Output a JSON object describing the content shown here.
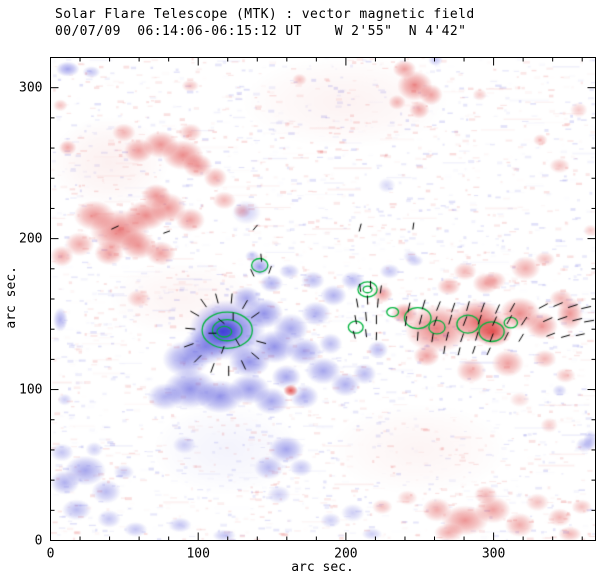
{
  "header": {
    "line1": "Solar Flare Telescope (MTK) : vector magnetic field",
    "line2": "00/07/09  06:14:06-06:15:12 UT    W 2'55\"  N 4'42\""
  },
  "chart_data": {
    "type": "heatmap",
    "title": "Solar Flare Telescope (MTK) : vector magnetic field",
    "subtitle": "00/07/09  06:14:06-06:15:12 UT    W 2'55\"  N 4'42\"",
    "xlabel": "arc sec.",
    "ylabel": "arc sec.",
    "xlim": [
      0,
      369
    ],
    "ylim": [
      0,
      320
    ],
    "xticks": [
      0,
      100,
      200,
      300
    ],
    "yticks": [
      0,
      100,
      200,
      300
    ],
    "minor_tick_step": 20,
    "legend": "none",
    "grid": false,
    "colors": {
      "positive": "#dc2d2d",
      "negative": "#3a3ad7",
      "contour": "#00b43c",
      "vector": "#000000",
      "axis": "#000000",
      "background": "#ffffff"
    },
    "noise": {
      "seed": 20000709,
      "count": 3200,
      "max_alpha": 0.16
    },
    "blobs": [
      [
        200,
        290,
        70,
        30,
        "r",
        0.06
      ],
      [
        90,
        160,
        50,
        25,
        "r",
        0.05
      ],
      [
        250,
        60,
        60,
        30,
        "r",
        0.05
      ],
      [
        120,
        60,
        50,
        30,
        "b",
        0.06
      ],
      [
        40,
        250,
        40,
        30,
        "r",
        0.07
      ],
      [
        12,
        312,
        8,
        5,
        "b",
        0.45
      ],
      [
        28,
        310,
        6,
        4,
        "b",
        0.3
      ],
      [
        7,
        146,
        5,
        8,
        "b",
        0.4
      ],
      [
        10,
        93,
        5,
        4,
        "b",
        0.25
      ],
      [
        261,
        318,
        5,
        4,
        "b",
        0.3
      ],
      [
        120,
        139,
        26,
        20,
        "b",
        0.75
      ],
      [
        117,
        138,
        13,
        9,
        "b",
        0.9
      ],
      [
        105,
        128,
        16,
        12,
        "b",
        0.55
      ],
      [
        92,
        120,
        16,
        12,
        "b",
        0.5
      ],
      [
        95,
        100,
        18,
        13,
        "b",
        0.55
      ],
      [
        78,
        95,
        12,
        9,
        "b",
        0.4
      ],
      [
        115,
        95,
        16,
        11,
        "b",
        0.55
      ],
      [
        135,
        100,
        14,
        10,
        "b",
        0.5
      ],
      [
        150,
        92,
        12,
        9,
        "b",
        0.45
      ],
      [
        135,
        118,
        14,
        10,
        "b",
        0.55
      ],
      [
        152,
        128,
        14,
        11,
        "b",
        0.55
      ],
      [
        145,
        150,
        13,
        10,
        "b",
        0.55
      ],
      [
        133,
        160,
        10,
        8,
        "b",
        0.45
      ],
      [
        142,
        181,
        7,
        6,
        "b",
        0.5
      ],
      [
        150,
        170,
        8,
        6,
        "b",
        0.4
      ],
      [
        163,
        140,
        12,
        10,
        "b",
        0.45
      ],
      [
        172,
        125,
        12,
        9,
        "b",
        0.45
      ],
      [
        185,
        112,
        12,
        9,
        "b",
        0.45
      ],
      [
        200,
        103,
        10,
        8,
        "b",
        0.4
      ],
      [
        213,
        110,
        8,
        7,
        "b",
        0.35
      ],
      [
        190,
        130,
        8,
        7,
        "b",
        0.35
      ],
      [
        180,
        150,
        10,
        8,
        "b",
        0.4
      ],
      [
        192,
        162,
        9,
        7,
        "b",
        0.4
      ],
      [
        205,
        172,
        8,
        6,
        "b",
        0.35
      ],
      [
        178,
        172,
        8,
        6,
        "b",
        0.35
      ],
      [
        162,
        178,
        7,
        5,
        "b",
        0.3
      ],
      [
        222,
        126,
        7,
        6,
        "b",
        0.35
      ],
      [
        172,
        95,
        10,
        8,
        "b",
        0.4
      ],
      [
        160,
        108,
        10,
        8,
        "b",
        0.45
      ],
      [
        230,
        178,
        7,
        5,
        "b",
        0.3
      ],
      [
        247,
        185,
        6,
        4,
        "b",
        0.25
      ],
      [
        137,
        188,
        5,
        4,
        "b",
        0.3
      ],
      [
        244,
        188,
        5,
        4,
        "b",
        0.2
      ],
      [
        160,
        60,
        12,
        9,
        "b",
        0.45
      ],
      [
        148,
        48,
        10,
        8,
        "b",
        0.35
      ],
      [
        170,
        48,
        8,
        6,
        "b",
        0.3
      ],
      [
        155,
        30,
        8,
        6,
        "b",
        0.25
      ],
      [
        91,
        63,
        8,
        6,
        "b",
        0.25
      ],
      [
        133,
        217,
        10,
        8,
        "b",
        0.25
      ],
      [
        228,
        235,
        6,
        5,
        "b",
        0.2
      ],
      [
        24,
        46,
        14,
        10,
        "b",
        0.45
      ],
      [
        10,
        38,
        10,
        8,
        "b",
        0.4
      ],
      [
        38,
        32,
        10,
        8,
        "b",
        0.35
      ],
      [
        18,
        20,
        10,
        7,
        "b",
        0.35
      ],
      [
        40,
        14,
        8,
        6,
        "b",
        0.3
      ],
      [
        8,
        58,
        8,
        6,
        "b",
        0.3
      ],
      [
        50,
        45,
        7,
        5,
        "b",
        0.25
      ],
      [
        30,
        60,
        6,
        5,
        "b",
        0.25
      ],
      [
        58,
        7,
        8,
        5,
        "b",
        0.3
      ],
      [
        88,
        10,
        8,
        5,
        "b",
        0.3
      ],
      [
        118,
        3,
        8,
        4,
        "b",
        0.3
      ],
      [
        190,
        13,
        7,
        5,
        "b",
        0.25
      ],
      [
        218,
        4,
        7,
        4,
        "b",
        0.25
      ],
      [
        205,
        18,
        8,
        6,
        "b",
        0.25
      ],
      [
        345,
        99,
        5,
        4,
        "b",
        0.25
      ],
      [
        362,
        63,
        6,
        5,
        "b",
        0.3
      ],
      [
        366,
        66,
        5,
        7,
        "b",
        0.3
      ],
      [
        47,
        205,
        20,
        14,
        "r",
        0.6
      ],
      [
        30,
        215,
        14,
        10,
        "r",
        0.5
      ],
      [
        65,
        215,
        14,
        10,
        "r",
        0.55
      ],
      [
        80,
        220,
        12,
        10,
        "r",
        0.5
      ],
      [
        72,
        228,
        10,
        8,
        "r",
        0.5
      ],
      [
        95,
        212,
        10,
        8,
        "r",
        0.45
      ],
      [
        60,
        195,
        12,
        9,
        "r",
        0.5
      ],
      [
        75,
        190,
        10,
        8,
        "r",
        0.45
      ],
      [
        40,
        190,
        10,
        8,
        "r",
        0.45
      ],
      [
        20,
        196,
        10,
        8,
        "r",
        0.4
      ],
      [
        8,
        188,
        8,
        7,
        "r",
        0.4
      ],
      [
        90,
        255,
        14,
        10,
        "r",
        0.55
      ],
      [
        75,
        262,
        12,
        9,
        "r",
        0.5
      ],
      [
        60,
        258,
        10,
        8,
        "r",
        0.45
      ],
      [
        100,
        248,
        10,
        8,
        "r",
        0.5
      ],
      [
        112,
        240,
        8,
        7,
        "r",
        0.4
      ],
      [
        50,
        270,
        8,
        6,
        "r",
        0.35
      ],
      [
        95,
        270,
        8,
        6,
        "r",
        0.35
      ],
      [
        118,
        225,
        8,
        6,
        "r",
        0.35
      ],
      [
        130,
        218,
        6,
        5,
        "r",
        0.3
      ],
      [
        12,
        260,
        6,
        5,
        "r",
        0.4
      ],
      [
        7,
        288,
        5,
        4,
        "r",
        0.3
      ],
      [
        60,
        160,
        8,
        6,
        "r",
        0.3
      ],
      [
        95,
        301,
        6,
        4,
        "r",
        0.3
      ],
      [
        247,
        301,
        12,
        10,
        "r",
        0.55
      ],
      [
        240,
        312,
        8,
        6,
        "r",
        0.45
      ],
      [
        258,
        295,
        8,
        7,
        "r",
        0.45
      ],
      [
        250,
        285,
        7,
        6,
        "r",
        0.4
      ],
      [
        235,
        290,
        6,
        5,
        "r",
        0.35
      ],
      [
        169,
        305,
        5,
        4,
        "r",
        0.3
      ],
      [
        291,
        295,
        5,
        4,
        "r",
        0.25
      ],
      [
        332,
        265,
        5,
        4,
        "r",
        0.3
      ],
      [
        262,
        140,
        22,
        16,
        "r",
        0.6
      ],
      [
        290,
        145,
        18,
        14,
        "r",
        0.7
      ],
      [
        300,
        138,
        13,
        10,
        "r",
        0.8
      ],
      [
        318,
        150,
        14,
        11,
        "r",
        0.55
      ],
      [
        333,
        142,
        11,
        9,
        "r",
        0.5
      ],
      [
        310,
        117,
        11,
        9,
        "r",
        0.45
      ],
      [
        285,
        112,
        10,
        8,
        "r",
        0.4
      ],
      [
        255,
        122,
        9,
        7,
        "r",
        0.45
      ],
      [
        240,
        150,
        9,
        7,
        "r",
        0.55
      ],
      [
        225,
        163,
        7,
        6,
        "r",
        0.45
      ],
      [
        352,
        150,
        9,
        11,
        "r",
        0.5
      ],
      [
        295,
        170,
        9,
        7,
        "r",
        0.4
      ],
      [
        270,
        168,
        8,
        6,
        "r",
        0.4
      ],
      [
        322,
        180,
        10,
        8,
        "r",
        0.4
      ],
      [
        335,
        186,
        7,
        5,
        "r",
        0.3
      ],
      [
        346,
        160,
        8,
        6,
        "r",
        0.35
      ],
      [
        281,
        178,
        8,
        6,
        "r",
        0.35
      ],
      [
        301,
        172,
        8,
        6,
        "r",
        0.35
      ],
      [
        335,
        120,
        8,
        6,
        "r",
        0.35
      ],
      [
        349,
        109,
        7,
        5,
        "r",
        0.3
      ],
      [
        318,
        93,
        7,
        5,
        "r",
        0.2
      ],
      [
        366,
        205,
        5,
        4,
        "r",
        0.25
      ],
      [
        345,
        248,
        7,
        5,
        "r",
        0.3
      ],
      [
        358,
        285,
        6,
        5,
        "r",
        0.25
      ],
      [
        281,
        13,
        16,
        10,
        "r",
        0.5
      ],
      [
        300,
        20,
        12,
        9,
        "r",
        0.45
      ],
      [
        318,
        10,
        10,
        8,
        "r",
        0.4
      ],
      [
        262,
        20,
        10,
        8,
        "r",
        0.4
      ],
      [
        270,
        5,
        10,
        6,
        "r",
        0.4
      ],
      [
        295,
        30,
        8,
        6,
        "r",
        0.35
      ],
      [
        330,
        25,
        8,
        6,
        "r",
        0.3
      ],
      [
        345,
        15,
        8,
        6,
        "r",
        0.35
      ],
      [
        360,
        22,
        7,
        5,
        "r",
        0.3
      ],
      [
        352,
        4,
        8,
        5,
        "r",
        0.35
      ],
      [
        242,
        28,
        7,
        5,
        "r",
        0.25
      ],
      [
        338,
        76,
        6,
        5,
        "r",
        0.25
      ],
      [
        225,
        22,
        7,
        5,
        "r",
        0.3
      ],
      [
        163,
        99,
        9,
        7,
        "w",
        0.85
      ],
      [
        163,
        99,
        5,
        4,
        "r",
        0.8
      ]
    ],
    "contours": [
      [
        120,
        139,
        17,
        12
      ],
      [
        120,
        139,
        10,
        7
      ],
      [
        118,
        138,
        5,
        3.5
      ],
      [
        142,
        182,
        5.5,
        4.5
      ],
      [
        207,
        141,
        5,
        4
      ],
      [
        215,
        166,
        6.5,
        5
      ],
      [
        215,
        166,
        3,
        2.2
      ],
      [
        232,
        151,
        4,
        3
      ],
      [
        249,
        147,
        9,
        7
      ],
      [
        262,
        141,
        5.5,
        4.5
      ],
      [
        283,
        143,
        7.5,
        6
      ],
      [
        299,
        138,
        8.5,
        6.5
      ],
      [
        312,
        144,
        4.5,
        3.5
      ]
    ],
    "vectors": [
      [
        98,
        150,
        150,
        10
      ],
      [
        104,
        157,
        125,
        10
      ],
      [
        113,
        160,
        105,
        10
      ],
      [
        123,
        160,
        85,
        10
      ],
      [
        132,
        156,
        60,
        10
      ],
      [
        139,
        149,
        35,
        10
      ],
      [
        95,
        140,
        175,
        10
      ],
      [
        94,
        129,
        200,
        10
      ],
      [
        100,
        120,
        225,
        10
      ],
      [
        110,
        114,
        250,
        10
      ],
      [
        121,
        112,
        270,
        10
      ],
      [
        131,
        116,
        295,
        10
      ],
      [
        139,
        122,
        320,
        10
      ],
      [
        143,
        131,
        345,
        10
      ],
      [
        110,
        137,
        180,
        8
      ],
      [
        116,
        145,
        140,
        8
      ],
      [
        124,
        148,
        90,
        8
      ],
      [
        127,
        131,
        300,
        8
      ],
      [
        117,
        126,
        250,
        8
      ],
      [
        137,
        177,
        115,
        8
      ],
      [
        143,
        187,
        95,
        8
      ],
      [
        149,
        179,
        70,
        8
      ],
      [
        207,
        146,
        100,
        9
      ],
      [
        214,
        148,
        95,
        9
      ],
      [
        221,
        146,
        90,
        9
      ],
      [
        208,
        157,
        100,
        9
      ],
      [
        215,
        159,
        92,
        9
      ],
      [
        222,
        157,
        85,
        9
      ],
      [
        210,
        167,
        98,
        8
      ],
      [
        217,
        169,
        90,
        8
      ],
      [
        224,
        166,
        82,
        8
      ],
      [
        206,
        136,
        105,
        8
      ],
      [
        214,
        137,
        97,
        8
      ],
      [
        221,
        135,
        88,
        8
      ],
      [
        243,
        154,
        78,
        10
      ],
      [
        253,
        156,
        73,
        10
      ],
      [
        263,
        155,
        68,
        10
      ],
      [
        273,
        154,
        71,
        10
      ],
      [
        283,
        155,
        74,
        10
      ],
      [
        293,
        154,
        70,
        10
      ],
      [
        303,
        153,
        66,
        10
      ],
      [
        313,
        154,
        61,
        10
      ],
      [
        241,
        145,
        82,
        10
      ],
      [
        251,
        146,
        76,
        10
      ],
      [
        261,
        145,
        71,
        10
      ],
      [
        271,
        146,
        73,
        10
      ],
      [
        281,
        145,
        69,
        10
      ],
      [
        291,
        146,
        71,
        10
      ],
      [
        301,
        145,
        66,
        10
      ],
      [
        311,
        146,
        61,
        10
      ],
      [
        321,
        145,
        56,
        10
      ],
      [
        249,
        135,
        86,
        9
      ],
      [
        259,
        134,
        81,
        9
      ],
      [
        269,
        135,
        76,
        9
      ],
      [
        279,
        134,
        71,
        9
      ],
      [
        289,
        135,
        73,
        9
      ],
      [
        299,
        134,
        69,
        9
      ],
      [
        309,
        135,
        63,
        9
      ],
      [
        319,
        134,
        59,
        9
      ],
      [
        267,
        126,
        81,
        8
      ],
      [
        277,
        125,
        76,
        8
      ],
      [
        287,
        126,
        71,
        8
      ],
      [
        297,
        125,
        66,
        8
      ],
      [
        334,
        155,
        28,
        10
      ],
      [
        344,
        156,
        23,
        10
      ],
      [
        354,
        155,
        18,
        10
      ],
      [
        363,
        154,
        13,
        10
      ],
      [
        337,
        146,
        24,
        10
      ],
      [
        347,
        147,
        19,
        10
      ],
      [
        357,
        146,
        14,
        10
      ],
      [
        365,
        145,
        10,
        10
      ],
      [
        339,
        136,
        21,
        9
      ],
      [
        349,
        135,
        16,
        9
      ],
      [
        359,
        136,
        12,
        9
      ],
      [
        44,
        207,
        205,
        8
      ],
      [
        79,
        204,
        200,
        7
      ],
      [
        210,
        207,
        255,
        8
      ],
      [
        246,
        208,
        262,
        7
      ],
      [
        139,
        207,
        230,
        7
      ]
    ]
  }
}
